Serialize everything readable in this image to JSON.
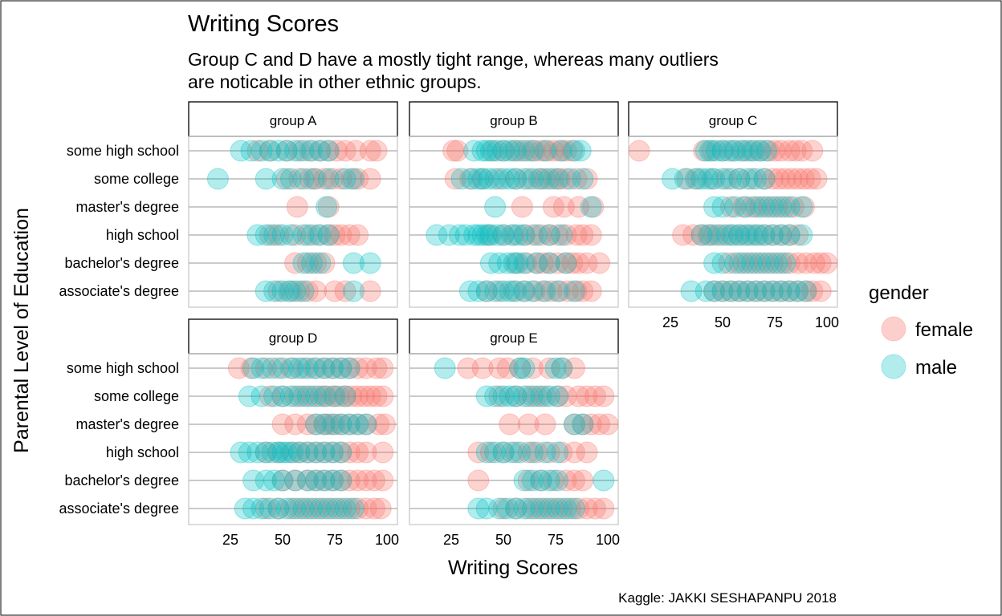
{
  "chart_data": {
    "type": "scatter",
    "title": "Writing Scores",
    "subtitle": "Group C and D have a mostly tight range, whereas many outliers are noticable in other ethnic groups.",
    "subtitle_lines": [
      "Group C and D have a mostly tight range, whereas many outliers",
      "are noticable in other ethnic groups."
    ],
    "caption": "Kaggle: JAKKI SESHAPANPU 2018",
    "xlabel": "Writing Scores",
    "ylabel": "Parental Level of Education",
    "xlim": [
      5,
      105
    ],
    "x_ticks": [
      25,
      50,
      75,
      100
    ],
    "categories": [
      "some high school",
      "some college",
      "master's degree",
      "high school",
      "bachelor's degree",
      "associate's degree"
    ],
    "legend": {
      "title": "gender",
      "position": "right",
      "entries": [
        {
          "label": "female",
          "color": "#F8766D"
        },
        {
          "label": "male",
          "color": "#00BFC4"
        }
      ]
    },
    "panels": [
      {
        "name": "group A",
        "series": [
          {
            "name": "female",
            "points": {
              "some high school": [
                38,
                44,
                52,
                58,
                63,
                68,
                72,
                76,
                80,
                85,
                92,
                95
              ],
              "some college": [
                52,
                58,
                63,
                66,
                70,
                74,
                78,
                83,
                86,
                92
              ],
              "master's degree": [
                57,
                72
              ],
              "high school": [
                44,
                48,
                56,
                62,
                67,
                72,
                75,
                78,
                82,
                86
              ],
              "bachelor's degree": [
                56,
                62,
                66,
                70
              ],
              "associate's degree": [
                48,
                54,
                58,
                62,
                66,
                75,
                80,
                92
              ]
            }
          },
          {
            "name": "male",
            "points": {
              "some high school": [
                30,
                35,
                40,
                44,
                48,
                52,
                56,
                60,
                64,
                68,
                72
              ],
              "some college": [
                19,
                42,
                50,
                54,
                60,
                65,
                72,
                80,
                84
              ],
              "master's degree": [
                71
              ],
              "high school": [
                38,
                42,
                46,
                50,
                54,
                60,
                64,
                68,
                72
              ],
              "bachelor's degree": [
                60,
                64,
                68,
                84,
                92
              ],
              "associate's degree": [
                42,
                46,
                50,
                53,
                56,
                60,
                84
              ]
            }
          }
        ]
      },
      {
        "name": "group B",
        "series": [
          {
            "name": "female",
            "points": {
              "some high school": [
                26,
                28,
                45,
                50,
                55,
                58,
                62,
                65,
                68,
                71,
                74,
                77,
                80,
                83
              ],
              "some college": [
                27,
                34,
                40,
                48,
                56,
                62,
                67,
                70,
                74,
                77,
                80,
                85,
                90
              ],
              "master's degree": [
                59,
                74,
                79,
                86,
                93
              ],
              "high school": [
                43,
                50,
                55,
                60,
                64,
                68,
                72,
                76,
                80,
                85,
                88,
                92
              ],
              "bachelor's degree": [
                56,
                61,
                66,
                69,
                72,
                76,
                80,
                83,
                86,
                90,
                96
              ],
              "associate's degree": [
                42,
                48,
                55,
                60,
                65,
                69,
                73,
                77,
                81,
                85,
                88,
                92
              ]
            }
          },
          {
            "name": "male",
            "points": {
              "some high school": [
                36,
                40,
                42,
                44,
                47,
                50,
                53,
                56,
                60,
                64,
                70,
                78,
                84,
                87
              ],
              "some college": [
                30,
                35,
                38,
                40,
                43,
                46,
                50,
                53,
                56,
                60,
                64,
                68,
                72,
                76,
                82,
                88
              ],
              "master's degree": [
                46,
                92
              ],
              "high school": [
                18,
                24,
                29,
                32,
                36,
                38,
                40,
                42,
                44,
                47,
                50,
                54,
                57,
                60,
                66,
                72,
                78
              ],
              "bachelor's degree": [
                44,
                48,
                52,
                55,
                57,
                60,
                66,
                72,
                80
              ],
              "associate's degree": [
                34,
                38,
                42,
                46,
                50,
                53,
                56,
                60,
                64,
                70,
                76,
                84
              ]
            }
          }
        ]
      },
      {
        "name": "group C",
        "series": [
          {
            "name": "female",
            "points": {
              "some high school": [
                10,
                41,
                45,
                50,
                55,
                60,
                64,
                68,
                72,
                75,
                78,
                82,
                85,
                88,
                93
              ],
              "some college": [
                33,
                38,
                45,
                52,
                58,
                64,
                70,
                74,
                77,
                80,
                83,
                86,
                89,
                92,
                95
              ],
              "master's degree": [
                54,
                60,
                64,
                68,
                72,
                76,
                80,
                84,
                89
              ],
              "high school": [
                31,
                36,
                40,
                43,
                46,
                50,
                54,
                58,
                62,
                66,
                70,
                74,
                78,
                82,
                86
              ],
              "bachelor's degree": [
                53,
                58,
                62,
                66,
                70,
                74,
                78,
                82,
                86,
                90,
                94,
                97,
                100
              ],
              "associate's degree": [
                46,
                50,
                54,
                58,
                62,
                66,
                70,
                74,
                78,
                82,
                86,
                90,
                93,
                97
              ]
            }
          },
          {
            "name": "male",
            "points": {
              "some high school": [
                42,
                44,
                47,
                50,
                53,
                56,
                59,
                62,
                65,
                68,
                71
              ],
              "some college": [
                26,
                32,
                37,
                40,
                43,
                46,
                50,
                54,
                58,
                62,
                66,
                70
              ],
              "master's degree": [
                46,
                50,
                56,
                61,
                66,
                70,
                74,
                78,
                82,
                88
              ],
              "high school": [
                40,
                44,
                48,
                52,
                55,
                58,
                61,
                64,
                67,
                70,
                74,
                78,
                82,
                88
              ],
              "bachelor's degree": [
                46,
                50,
                56,
                60,
                64,
                68,
                72,
                76,
                80
              ],
              "associate's degree": [
                35,
                42,
                46,
                50,
                54,
                58,
                62,
                66,
                70,
                74,
                78,
                82,
                86,
                90
              ]
            }
          }
        ]
      },
      {
        "name": "group D",
        "series": [
          {
            "name": "female",
            "points": {
              "some high school": [
                29,
                35,
                42,
                48,
                54,
                60,
                65,
                70,
                74,
                78,
                82,
                86,
                90,
                95,
                98
              ],
              "some college": [
                44,
                50,
                56,
                60,
                64,
                68,
                71,
                74,
                77,
                80,
                83,
                86,
                89,
                92,
                95,
                98
              ],
              "master's degree": [
                50,
                56,
                62,
                66,
                70,
                72,
                75,
                78,
                82,
                86,
                90,
                96,
                99
              ],
              "high school": [
                42,
                48,
                54,
                58,
                62,
                66,
                70,
                74,
                78,
                82,
                86,
                90,
                98
              ],
              "bachelor's degree": [
                50,
                56,
                62,
                66,
                70,
                74,
                78,
                82,
                86,
                90,
                94,
                98
              ],
              "associate's degree": [
                42,
                48,
                54,
                58,
                62,
                66,
                70,
                74,
                78,
                82,
                86,
                90,
                94,
                97
              ]
            }
          },
          {
            "name": "male",
            "points": {
              "some high school": [
                36,
                40,
                45,
                50,
                55,
                58,
                62,
                66,
                70,
                74,
                78,
                82
              ],
              "some college": [
                34,
                40,
                46,
                50,
                54,
                58,
                62,
                66,
                70,
                75,
                80
              ],
              "master's degree": [
                66,
                70,
                74,
                78,
                82,
                86,
                90
              ],
              "high school": [
                30,
                34,
                38,
                42,
                45,
                48,
                50,
                52,
                55,
                58,
                62,
                66,
                70,
                74,
                78
              ],
              "bachelor's degree": [
                36,
                42,
                46,
                50,
                56,
                62,
                66,
                70,
                74,
                78
              ],
              "associate's degree": [
                32,
                36,
                40,
                44,
                48,
                52,
                56,
                60,
                64,
                68,
                72,
                76,
                80,
                84
              ]
            }
          }
        ]
      },
      {
        "name": "group E",
        "series": [
          {
            "name": "female",
            "points": {
              "some high school": [
                33,
                40,
                48,
                52,
                58,
                64,
                72,
                78,
                84
              ],
              "some college": [
                48,
                56,
                62,
                66,
                70,
                76,
                80,
                86,
                90,
                94,
                98
              ],
              "master's degree": [
                53,
                62,
                70,
                84,
                88,
                92,
                96,
                100
              ],
              "high school": [
                38,
                44,
                50,
                56,
                62,
                66,
                72,
                78,
                84,
                90
              ],
              "bachelor's degree": [
                38,
                62,
                68,
                74,
                80,
                84,
                88
              ],
              "associate's degree": [
                50,
                56,
                62,
                66,
                70,
                74,
                78,
                82,
                86,
                90,
                94,
                98
              ]
            }
          },
          {
            "name": "male",
            "points": {
              "some high school": [
                22,
                58,
                60,
                75,
                78
              ],
              "some college": [
                42,
                46,
                50,
                53,
                56,
                60,
                64,
                68,
                72,
                76
              ],
              "master's degree": [
                84,
                88
              ],
              "high school": [
                42,
                46,
                50,
                54,
                58,
                64,
                70,
                76
              ],
              "bachelor's degree": [
                60,
                64,
                68,
                72,
                76,
                98
              ],
              "associate's degree": [
                38,
                42,
                48,
                52,
                56,
                60,
                64,
                68,
                72,
                76,
                80,
                84
              ]
            }
          }
        ]
      }
    ]
  }
}
